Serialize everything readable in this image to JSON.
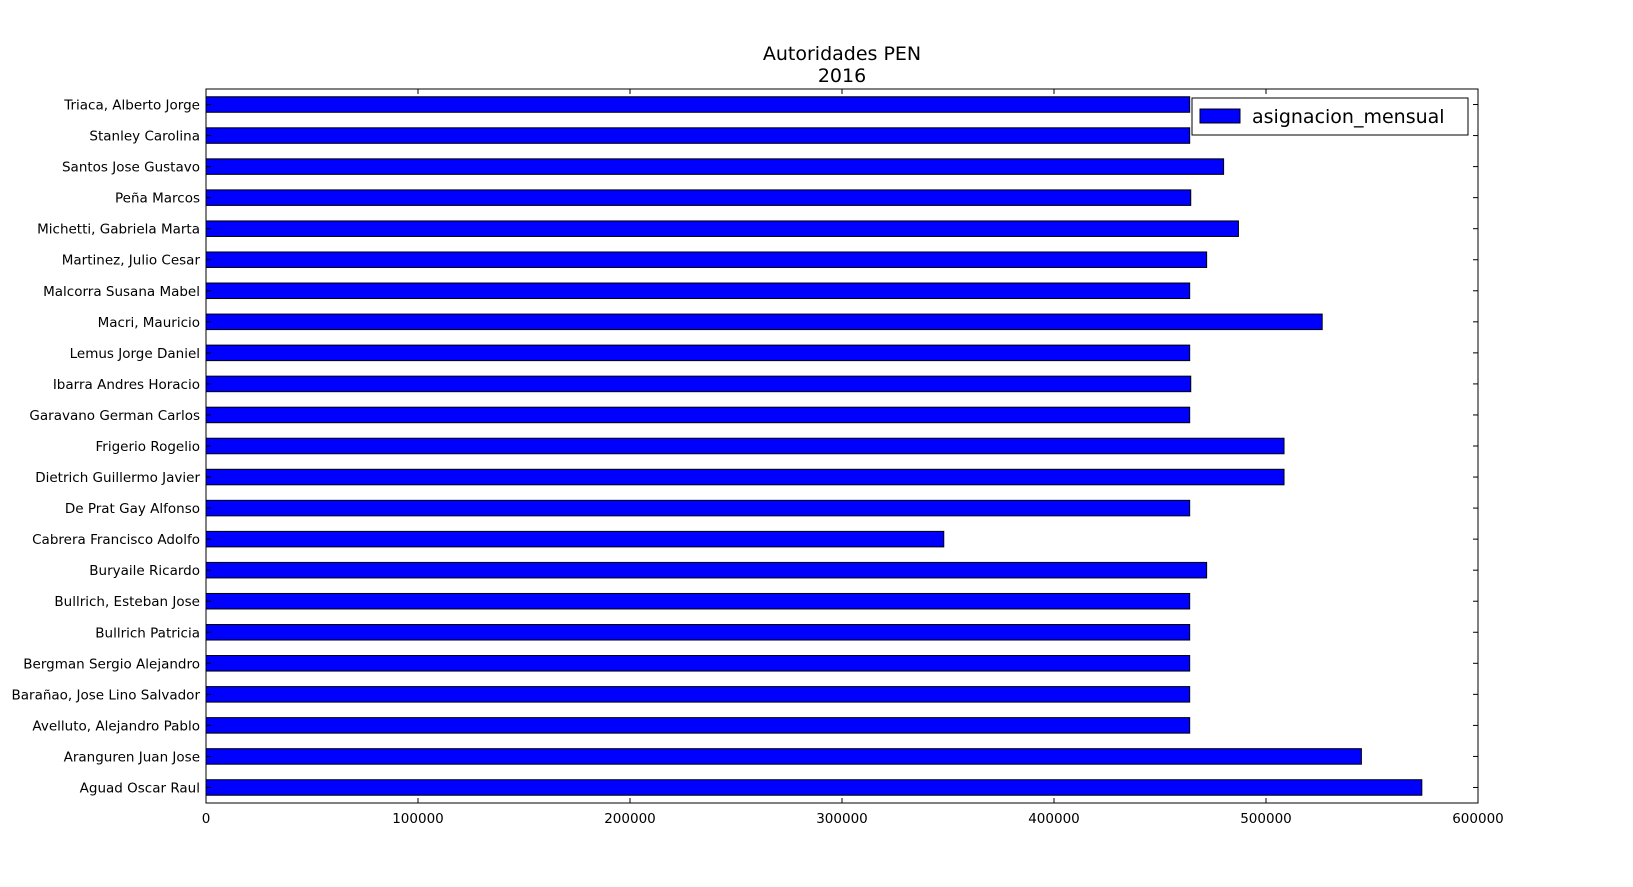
{
  "chart_data": {
    "type": "bar",
    "orientation": "horizontal",
    "title": "Autoridades PEN",
    "subtitle": "2016",
    "xlim": [
      0,
      600000
    ],
    "xticks": [
      0,
      100000,
      200000,
      300000,
      400000,
      500000,
      600000
    ],
    "xtick_labels": [
      "0",
      "100000",
      "200000",
      "300000",
      "400000",
      "500000",
      "600000"
    ],
    "grid": false,
    "legend_position": "top-right",
    "categories": [
      "Triaca, Alberto Jorge",
      "Stanley Carolina",
      "Santos Jose Gustavo",
      "Peña Marcos",
      "Michetti, Gabriela Marta",
      "Martinez, Julio Cesar",
      "Malcorra Susana Mabel",
      "Macri, Mauricio",
      "Lemus Jorge Daniel",
      "Ibarra Andres Horacio",
      "Garavano German Carlos",
      "Frigerio Rogelio",
      "Dietrich Guillermo Javier",
      "De Prat Gay Alfonso",
      "Cabrera Francisco Adolfo",
      "Buryaile Ricardo",
      "Bullrich, Esteban Jose",
      "Bullrich Patricia",
      "Bergman Sergio Alejandro",
      "Barañao, Jose Lino Salvador",
      "Avelluto, Alejandro Pablo",
      "Aranguren Juan Jose",
      "Aguad Oscar Raul"
    ],
    "series": [
      {
        "name": "asignacion_mensual",
        "color": "#0000ff",
        "values": [
          464000,
          464000,
          480000,
          464500,
          487000,
          472000,
          464000,
          526500,
          464000,
          464500,
          464000,
          508500,
          508500,
          464000,
          348000,
          472000,
          464000,
          464000,
          464000,
          464000,
          464000,
          545000,
          573500
        ]
      }
    ]
  }
}
